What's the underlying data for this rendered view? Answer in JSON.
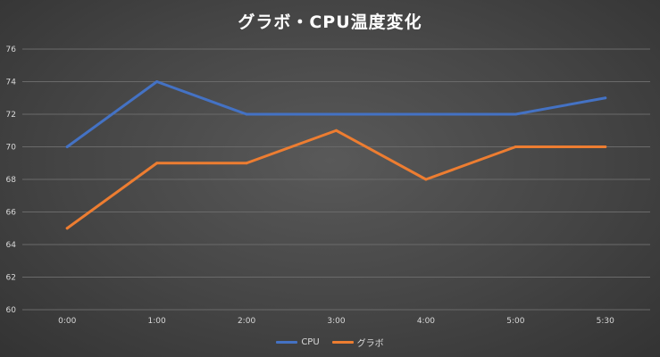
{
  "chart_data": {
    "type": "line",
    "title": "グラボ・CPU温度変化",
    "categories": [
      "0:00",
      "1:00",
      "2:00",
      "3:00",
      "4:00",
      "5:00",
      "5:30"
    ],
    "series": [
      {
        "name": "CPU",
        "color": "#4472c4",
        "values": [
          70,
          74,
          72,
          72,
          72,
          72,
          73
        ]
      },
      {
        "name": "グラボ",
        "color": "#ed7d31",
        "values": [
          65,
          69,
          69,
          71,
          68,
          70,
          70
        ]
      }
    ],
    "ylim": [
      60,
      76
    ],
    "yticks": [
      "60",
      "62",
      "64",
      "66",
      "68",
      "70",
      "72",
      "74",
      "76"
    ],
    "grid": true,
    "legend": "bottom"
  }
}
